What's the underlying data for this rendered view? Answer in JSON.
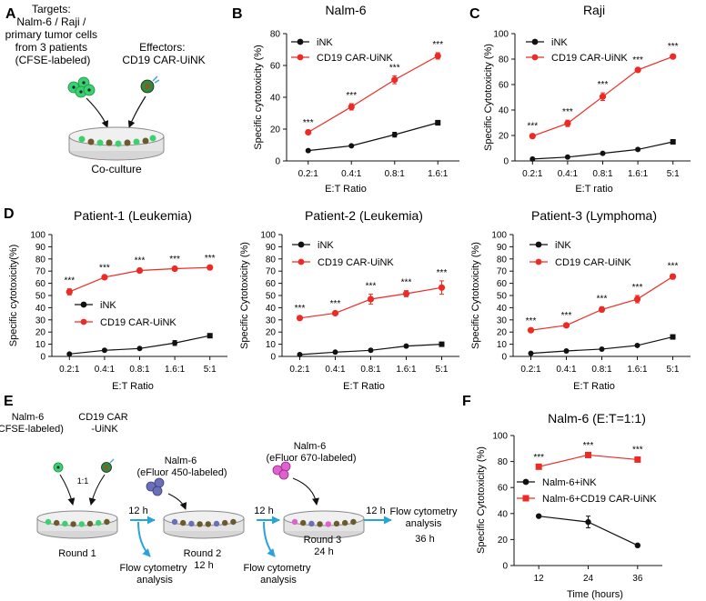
{
  "colors": {
    "inuk": "#111111",
    "car": "#ee2a24",
    "arrow_blue": "#2aa3db",
    "cell_green": "#3bd16f",
    "cell_blue": "#6a6fb8",
    "cell_pink": "#e25fd0",
    "dish": "#c8c8c8"
  },
  "panelA": {
    "letter": "A",
    "targets_lines": [
      "Targets:",
      "Nalm-6 / Raji /",
      "primary tumor cells",
      "from 3 patients",
      "(CFSE-labeled)"
    ],
    "effectors_lines": [
      "Effectors:",
      "CD19 CAR-UiNK"
    ],
    "caption": "Co-culture"
  },
  "panelE": {
    "letter": "E",
    "nalm6_lines": [
      "Nalm-6",
      "(CFSE-labeled)"
    ],
    "car_lines": [
      "CD19 CAR",
      "-UiNK"
    ],
    "ratio": "1:1",
    "round2_target_lines": [
      "Nalm-6",
      "(eFluor 450-labeled)"
    ],
    "round3_target_lines": [
      "Nalm-6",
      "(eFluor 670-labeled)"
    ],
    "interval": "12 h",
    "round1": "Round 1",
    "round2_lines": [
      "Round 2",
      "12 h"
    ],
    "round3_lines": [
      "Round 3",
      "24 h"
    ],
    "flow_lines": [
      "Flow cytometry",
      "analysis"
    ],
    "final_lines": [
      "Flow cytometry",
      "analysis",
      "36 h"
    ]
  },
  "chart_data": [
    {
      "panel": "B",
      "type": "line",
      "title": "Nalm-6",
      "ylabel": "Specific cytotoxicity (%)",
      "xlabel": "E:T Ratio",
      "categories": [
        "0.2:1",
        "0.4:1",
        "0.8:1",
        "1.6:1"
      ],
      "ylim": [
        0,
        80
      ],
      "yticks": [
        0,
        20,
        40,
        60,
        80
      ],
      "legend_pos": "top-left",
      "series": [
        {
          "name": "iNK",
          "values": [
            6.5,
            9.5,
            16.5,
            24
          ],
          "errors": [
            0.6,
            0.6,
            1.5,
            1.5
          ]
        },
        {
          "name": "CD19 CAR-UiNK",
          "values": [
            18,
            34,
            51,
            66
          ],
          "errors": [
            1,
            2,
            2.5,
            2
          ]
        }
      ],
      "annotations": [
        "***",
        "***",
        "***",
        "***"
      ]
    },
    {
      "panel": "C",
      "type": "line",
      "title": "Raji",
      "ylabel": "Specific Cytotoxicity (%)",
      "xlabel": "E:T ratio",
      "categories": [
        "0.2:1",
        "0.4:1",
        "0.8:1",
        "1.6:1",
        "5:1"
      ],
      "ylim": [
        0,
        100
      ],
      "yticks": [
        0,
        20,
        40,
        60,
        80,
        100
      ],
      "legend_pos": "top-left",
      "series": [
        {
          "name": "iNK",
          "values": [
            1.5,
            3,
            6,
            9,
            15
          ],
          "errors": [
            0.3,
            0.3,
            0.5,
            1,
            1
          ]
        },
        {
          "name": "CD19 CAR-UiNK",
          "values": [
            19.5,
            29.5,
            50.5,
            71.5,
            82
          ],
          "errors": [
            1.5,
            2.5,
            3,
            1.5,
            1.5
          ]
        }
      ],
      "annotations": [
        "***",
        "***",
        "***",
        "***",
        "***"
      ]
    },
    {
      "panel": "D1",
      "type": "line",
      "title": "Patient-1 (Leukemia)",
      "ylabel": "Specific cytotoxicity(%)",
      "xlabel": "E:T Ratio",
      "categories": [
        "0.2:1",
        "0.4:1",
        "0.8:1",
        "1.6:1",
        "5:1"
      ],
      "ylim": [
        0,
        100
      ],
      "yticks": [
        0,
        10,
        20,
        30,
        40,
        50,
        60,
        70,
        80,
        90,
        100
      ],
      "legend_pos": "center-left",
      "series": [
        {
          "name": "iNK",
          "values": [
            2,
            5,
            6.5,
            11,
            17
          ],
          "errors": [
            0.3,
            0.5,
            0.5,
            2,
            1
          ]
        },
        {
          "name": "CD19 CAR-UiNK",
          "values": [
            53,
            65,
            70.5,
            72,
            73
          ],
          "errors": [
            2.5,
            1,
            1.5,
            1,
            1
          ]
        }
      ],
      "annotations": [
        "***",
        "***",
        "***",
        "***",
        "***"
      ]
    },
    {
      "panel": "D2",
      "type": "line",
      "title": "Patient-2 (Leukemia)",
      "ylabel": "Specific Cytotoxicity (%)",
      "xlabel": "E:T Ratio",
      "categories": [
        "0.2:1",
        "0.4:1",
        "0.8:1",
        "1.6:1",
        "5:1"
      ],
      "ylim": [
        0,
        100
      ],
      "yticks": [
        0,
        10,
        20,
        30,
        40,
        50,
        60,
        70,
        80,
        90,
        100
      ],
      "legend_pos": "top-left",
      "series": [
        {
          "name": "iNK",
          "values": [
            1.5,
            3.5,
            5,
            8.5,
            10
          ],
          "errors": [
            0.3,
            0.5,
            0.5,
            1,
            1
          ]
        },
        {
          "name": "CD19 CAR-UiNK",
          "values": [
            31.5,
            35.5,
            47,
            51.5,
            56.5
          ],
          "errors": [
            1.5,
            1,
            4,
            2.5,
            5.5
          ]
        }
      ],
      "annotations": [
        "***",
        "***",
        "***",
        "***",
        "***"
      ]
    },
    {
      "panel": "D3",
      "type": "line",
      "title": "Patient-3 (Lymphoma)",
      "ylabel": "Specific Cytotoxicity (%)",
      "xlabel": "E:T Ratio",
      "categories": [
        "0.2:1",
        "0.4:1",
        "0.8:1",
        "1.6:1",
        "5:1"
      ],
      "ylim": [
        0,
        100
      ],
      "yticks": [
        0,
        10,
        20,
        30,
        40,
        50,
        60,
        70,
        80,
        90,
        100
      ],
      "legend_pos": "top-left",
      "series": [
        {
          "name": "iNK",
          "values": [
            2.5,
            4.5,
            6,
            9,
            16
          ],
          "errors": [
            0.3,
            0.5,
            0.5,
            1,
            1.5
          ]
        },
        {
          "name": "CD19 CAR-UiNK",
          "values": [
            21.5,
            25.5,
            38.5,
            47,
            65.5
          ],
          "errors": [
            1,
            1.5,
            2,
            3,
            2
          ]
        }
      ],
      "annotations": [
        "***",
        "***",
        "***",
        "***",
        "***"
      ]
    },
    {
      "panel": "F",
      "type": "line",
      "title": "Nalm-6 (E:T=1:1)",
      "ylabel": "Specific Cytotoxicity (%)",
      "xlabel": "Time (hours)",
      "categories": [
        "12",
        "24",
        "36"
      ],
      "ylim": [
        0,
        100
      ],
      "yticks": [
        0,
        20,
        40,
        60,
        80,
        100
      ],
      "legend_pos": "center",
      "series": [
        {
          "name": "Nalm-6+iNK",
          "values": [
            38,
            33.5,
            15.5
          ],
          "errors": [
            0.5,
            4.5,
            1
          ]
        },
        {
          "name": "Nalm-6+CD19 CAR-UiNK",
          "values": [
            76,
            85,
            81.5
          ],
          "errors": [
            1,
            1,
            1.5
          ]
        }
      ],
      "annotations": [
        "***",
        "***",
        "***"
      ]
    }
  ]
}
